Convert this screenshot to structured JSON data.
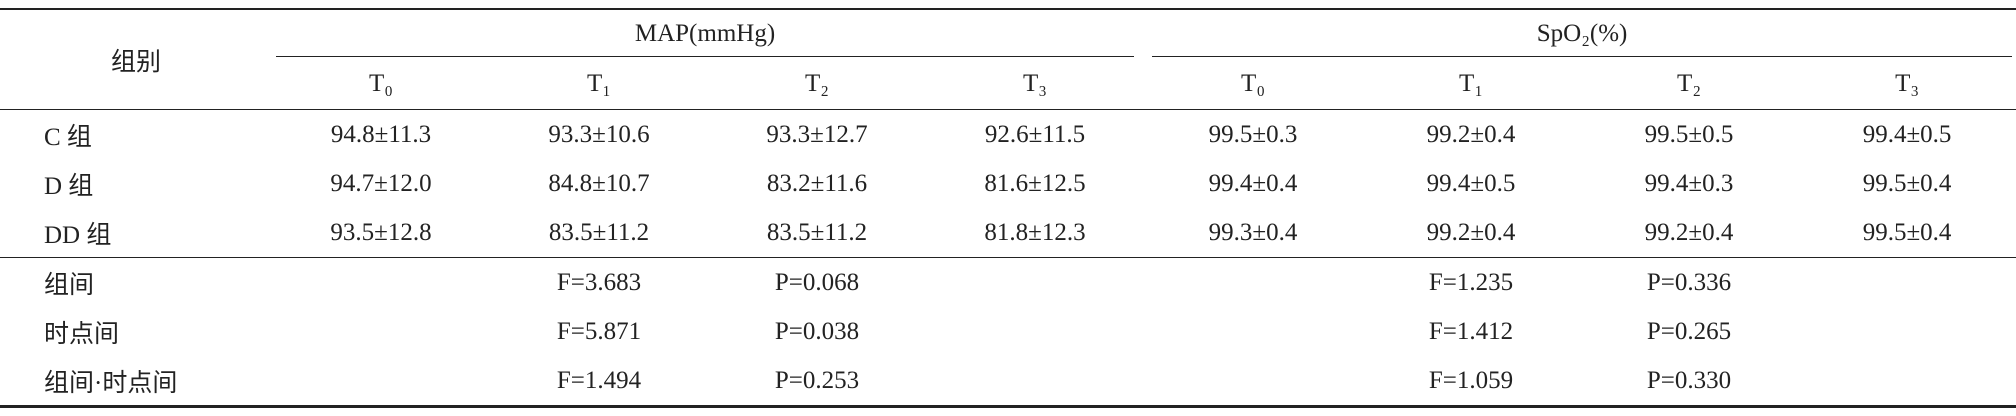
{
  "table": {
    "group_header": "组别",
    "groups": [
      "MAP(mmHg)",
      "SpO₂(%)"
    ],
    "timepoints": [
      "T₀",
      "T₁",
      "T₂",
      "T₃",
      "T₀",
      "T₁",
      "T₂",
      "T₃"
    ],
    "rows": [
      [
        "C 组",
        "94.8±11.3",
        "93.3±10.6",
        "93.3±12.7",
        "92.6±11.5",
        "99.5±0.3",
        "99.2±0.4",
        "99.5±0.5",
        "99.4±0.5"
      ],
      [
        "D 组",
        "94.7±12.0",
        "84.8±10.7",
        "83.2±11.6",
        "81.6±12.5",
        "99.4±0.4",
        "99.4±0.5",
        "99.4±0.3",
        "99.5±0.4"
      ],
      [
        "DD 组",
        "93.5±12.8",
        "83.5±11.2",
        "83.5±11.2",
        "81.8±12.3",
        "99.3±0.4",
        "99.2±0.4",
        "99.2±0.4",
        "99.5±0.4"
      ]
    ],
    "stats": [
      [
        "组间",
        "F=3.683",
        "P=0.068",
        "F=1.235",
        "P=0.336"
      ],
      [
        "时点间",
        "F=5.871",
        "P=0.038",
        "F=1.412",
        "P=0.265"
      ],
      [
        "组间·时点间",
        "F=1.494",
        "P=0.253",
        "F=1.059",
        "P=0.330"
      ]
    ]
  }
}
